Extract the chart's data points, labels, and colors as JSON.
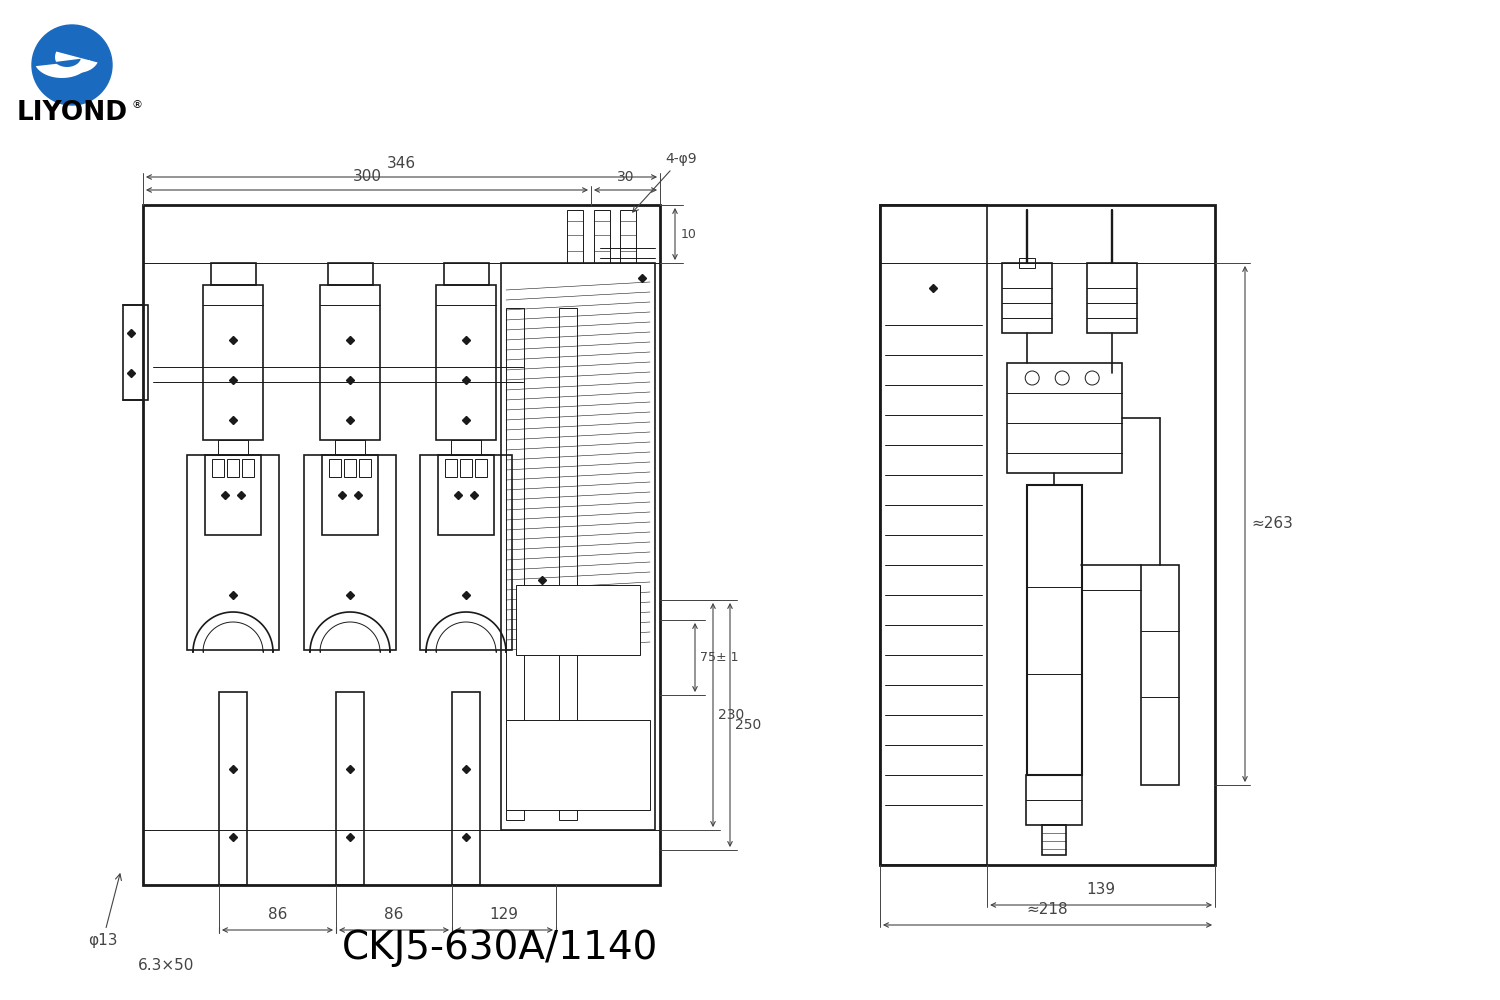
{
  "title": "CKJ5-630A/1140",
  "bg_color": "#ffffff",
  "line_color": "#1a1a1a",
  "dim_color": "#444444",
  "logo_text": "LIYOND",
  "dims": {
    "top_346": "346",
    "top_300": "300",
    "top_30": "30",
    "top_4phi9": "4-φ9",
    "right_10": "10",
    "right_75": "75± 1",
    "right_230": "230",
    "right_250": "250",
    "bot_86a": "86",
    "bot_86b": "86",
    "bot_129": "129",
    "bot_phi13": "φ13",
    "bot_6350": "6.3×50",
    "sv_139": "139",
    "sv_218": "≈218",
    "sv_263": "≈263"
  }
}
